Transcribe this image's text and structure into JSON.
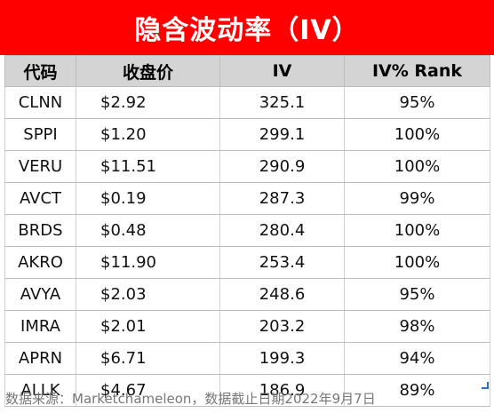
{
  "title": "隐含波动率（IV）",
  "table": {
    "headers": [
      "代码",
      "收盘价",
      "IV",
      "IV% Rank"
    ],
    "rows": [
      [
        "CLNN",
        "$2.92",
        "325.1",
        "95%"
      ],
      [
        "SPPI",
        "$1.20",
        "299.1",
        "100%"
      ],
      [
        "VERU",
        "$11.51",
        "290.9",
        "100%"
      ],
      [
        "AVCT",
        "$0.19",
        "287.3",
        "99%"
      ],
      [
        "BRDS",
        "$0.48",
        "280.4",
        "100%"
      ],
      [
        "AKRO",
        "$11.90",
        "253.4",
        "100%"
      ],
      [
        "AVYA",
        "$2.03",
        "248.6",
        "95%"
      ],
      [
        "IMRA",
        "$2.01",
        "203.2",
        "98%"
      ],
      [
        "APRN",
        "$6.71",
        "199.3",
        "94%"
      ],
      [
        "ALLK",
        "$4.67",
        "186.9",
        "89%"
      ]
    ]
  },
  "source": "数据来源：Marketchameleon，数据截止日期2022年9月7日",
  "colors": {
    "title_bg": "#ff0000",
    "title_text": "#ffffff",
    "header_bg": "#d4d4d4",
    "source_text": "#777777"
  }
}
